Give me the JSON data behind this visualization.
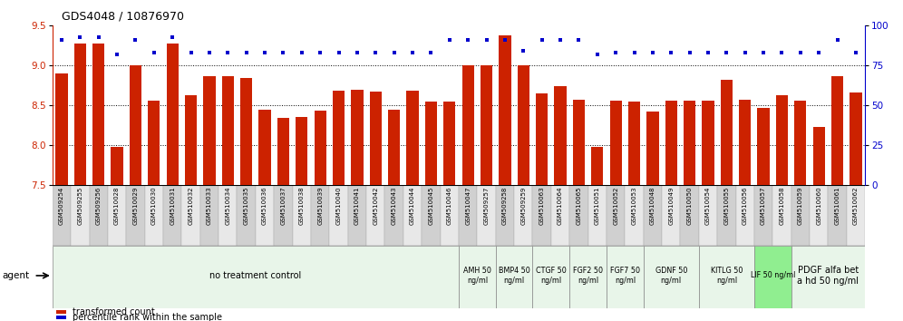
{
  "title": "GDS4048 / 10876970",
  "bar_color": "#cc2200",
  "dot_color": "#0000cc",
  "ylim_left": [
    7.5,
    9.5
  ],
  "ylim_right": [
    0,
    100
  ],
  "yticks_left": [
    7.5,
    8.0,
    8.5,
    9.0,
    9.5
  ],
  "yticks_right": [
    0,
    25,
    50,
    75,
    100
  ],
  "samples": [
    "GSM509254",
    "GSM509255",
    "GSM509256",
    "GSM510028",
    "GSM510029",
    "GSM510030",
    "GSM510031",
    "GSM510032",
    "GSM510033",
    "GSM510034",
    "GSM510035",
    "GSM510036",
    "GSM510037",
    "GSM510038",
    "GSM510039",
    "GSM510040",
    "GSM510041",
    "GSM510042",
    "GSM510043",
    "GSM510044",
    "GSM510045",
    "GSM510046",
    "GSM510047",
    "GSM509257",
    "GSM509258",
    "GSM509259",
    "GSM510063",
    "GSM510064",
    "GSM510065",
    "GSM510051",
    "GSM510052",
    "GSM510053",
    "GSM510048",
    "GSM510049",
    "GSM510050",
    "GSM510054",
    "GSM510055",
    "GSM510056",
    "GSM510057",
    "GSM510058",
    "GSM510059",
    "GSM510060",
    "GSM510061",
    "GSM510062"
  ],
  "bar_values": [
    8.9,
    9.28,
    9.28,
    7.97,
    9.0,
    8.56,
    9.28,
    8.63,
    8.87,
    8.86,
    8.84,
    8.44,
    8.34,
    8.35,
    8.43,
    8.68,
    8.69,
    8.67,
    8.44,
    8.68,
    8.55,
    8.55,
    9.0,
    9.0,
    9.38,
    9.0,
    8.65,
    8.74,
    8.57,
    7.97,
    8.56,
    8.55,
    8.42,
    8.56,
    8.56,
    8.56,
    8.82,
    8.57,
    8.47,
    8.63,
    8.56,
    8.22,
    8.86,
    8.66
  ],
  "dot_values": [
    91,
    93,
    93,
    82,
    91,
    83,
    93,
    83,
    83,
    83,
    83,
    83,
    83,
    83,
    83,
    83,
    83,
    83,
    83,
    83,
    83,
    91,
    91,
    91,
    91,
    84,
    91,
    91,
    91,
    82,
    83,
    83,
    83,
    83,
    83,
    83,
    83,
    83,
    83,
    83,
    83,
    83,
    91,
    83
  ],
  "groups": [
    {
      "label": "no treatment control",
      "start": 0,
      "end": 22,
      "color": "#e8f5e9"
    },
    {
      "label": "AMH 50\nng/ml",
      "start": 22,
      "end": 24,
      "color": "#e8f5e9"
    },
    {
      "label": "BMP4 50\nng/ml",
      "start": 24,
      "end": 26,
      "color": "#e8f5e9"
    },
    {
      "label": "CTGF 50\nng/ml",
      "start": 26,
      "end": 28,
      "color": "#e8f5e9"
    },
    {
      "label": "FGF2 50\nng/ml",
      "start": 28,
      "end": 30,
      "color": "#e8f5e9"
    },
    {
      "label": "FGF7 50\nng/ml",
      "start": 30,
      "end": 32,
      "color": "#e8f5e9"
    },
    {
      "label": "GDNF 50\nng/ml",
      "start": 32,
      "end": 35,
      "color": "#e8f5e9"
    },
    {
      "label": "KITLG 50\nng/ml",
      "start": 35,
      "end": 38,
      "color": "#e8f5e9"
    },
    {
      "label": "LIF 50 ng/ml",
      "start": 38,
      "end": 40,
      "color": "#90ee90"
    },
    {
      "label": "PDGF alfa bet\na hd 50 ng/ml",
      "start": 40,
      "end": 44,
      "color": "#e8f5e9"
    }
  ],
  "legend_bar_label": "transformed count",
  "legend_dot_label": "percentile rank within the sample",
  "grid_lines": [
    8.0,
    8.5,
    9.0
  ],
  "tick_cell_color_even": "#d0d0d0",
  "tick_cell_color_odd": "#e8e8e8",
  "group_border_color": "#888888",
  "agent_label": "agent"
}
